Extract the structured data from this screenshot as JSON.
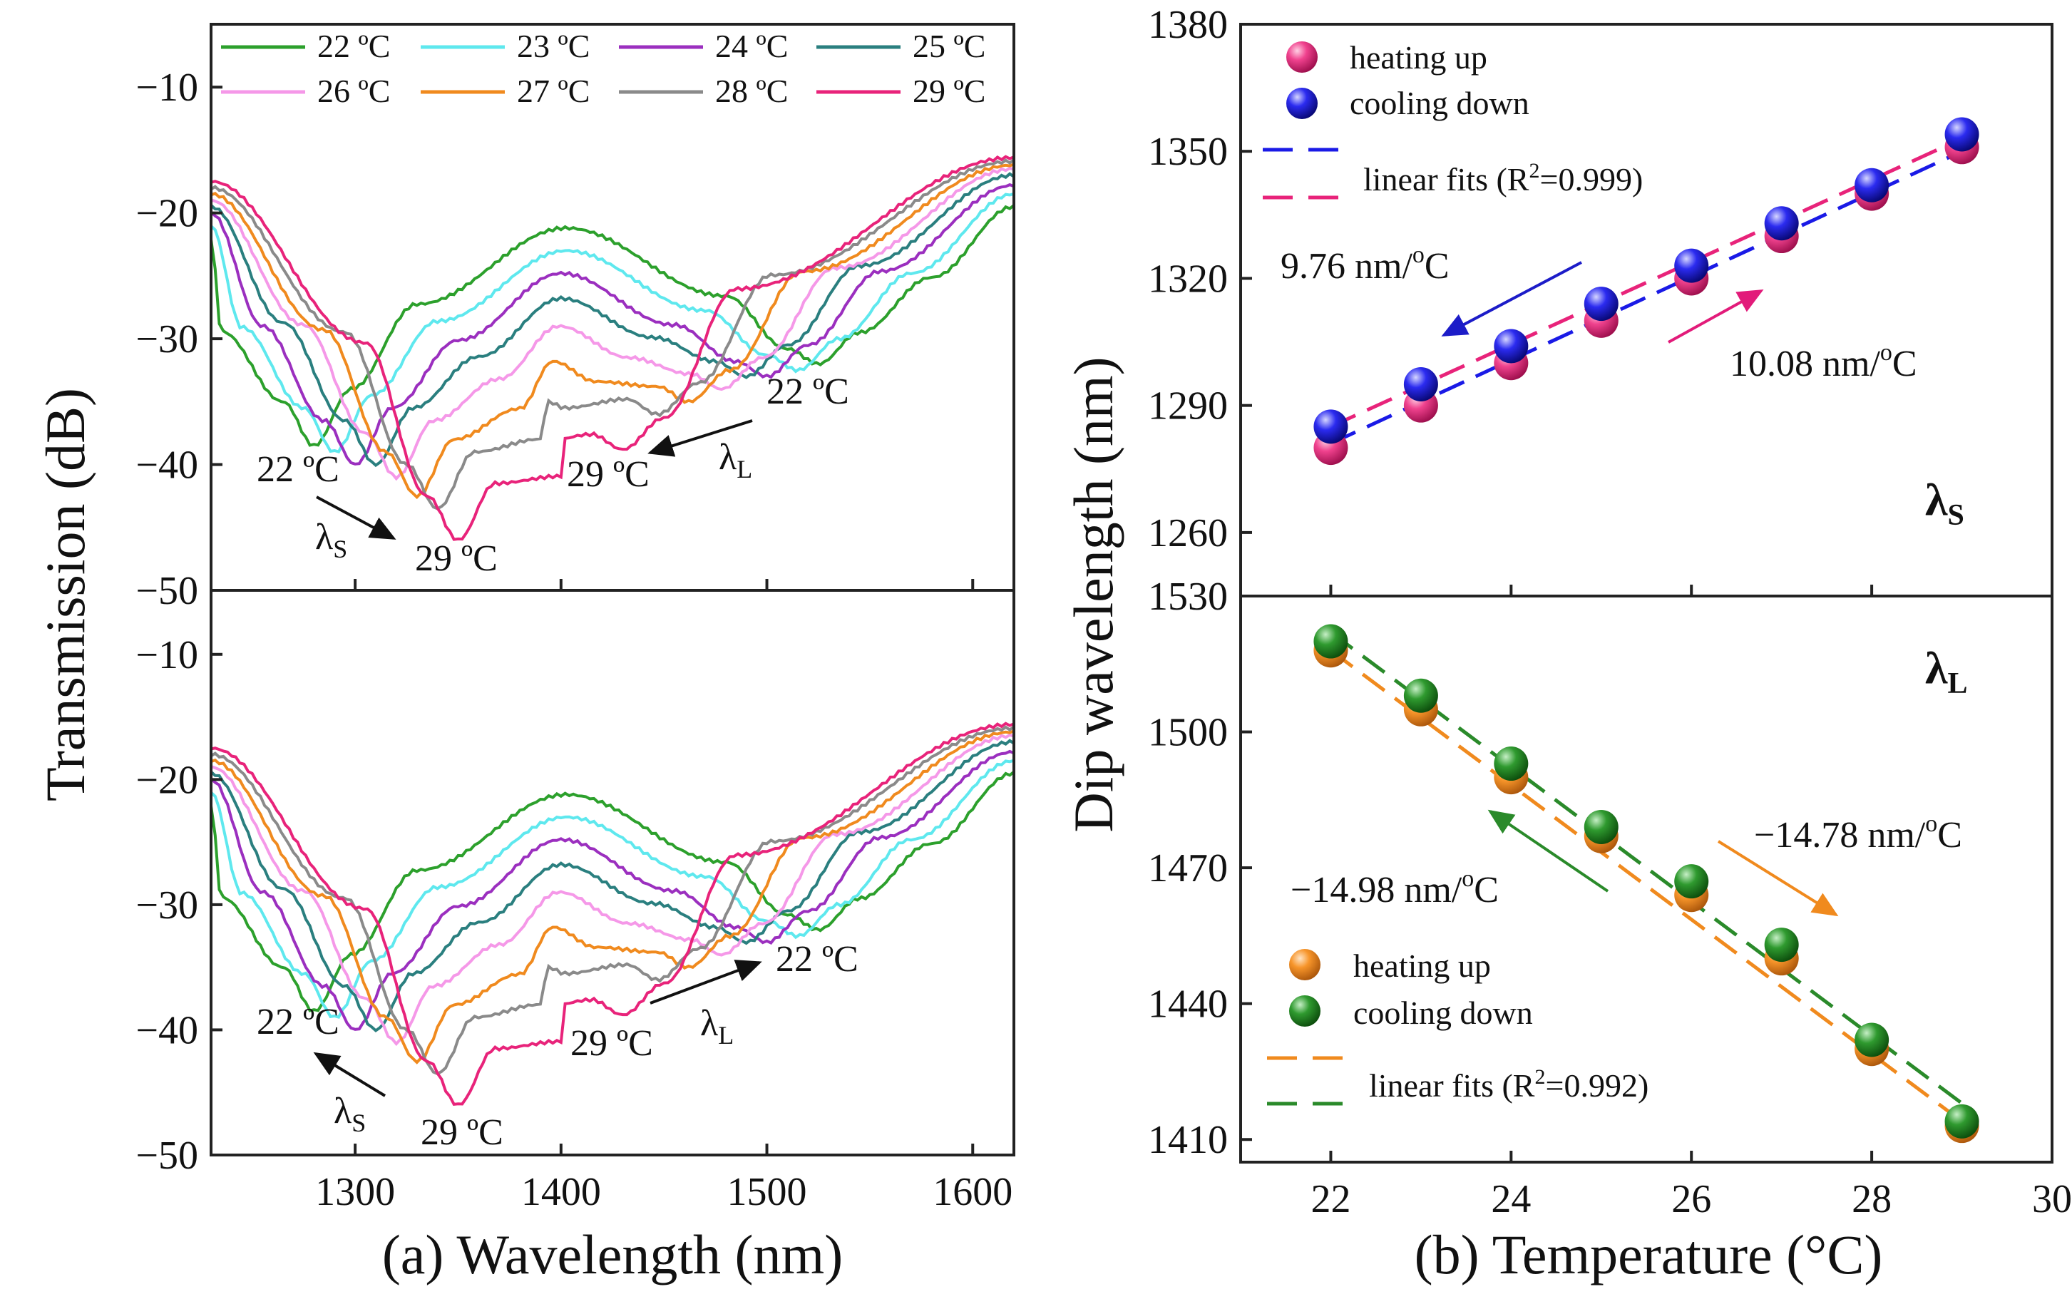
{
  "colors": {
    "t22": "#2ca02c",
    "t23": "#5ee8ee",
    "t24": "#9b2fbf",
    "t25": "#2a7f7f",
    "t26": "#f598e8",
    "t27": "#f08a1e",
    "t28": "#8a8a8a",
    "t29": "#e8237a",
    "cool_s": "#1a1ae6",
    "heat_s": "#e8237a",
    "heat_l": "#f08a1e",
    "cool_l": "#2a8a2a",
    "annot_blue": "#1c1cc8",
    "annot_pink": "#e21b7a",
    "annot_green": "#2ca02c",
    "annot_orange": "#f08a1e"
  },
  "chart_data": [
    {
      "id": "a-top",
      "type": "line",
      "xlabel": "(a) Wavelength (nm)",
      "ylabel": "Transmission (dB)",
      "xlim": [
        1230,
        1620
      ],
      "ylim": [
        -50,
        -5
      ],
      "xticks": [
        1300,
        1400,
        1500,
        1600
      ],
      "yticks": [
        -10,
        -20,
        -30,
        -40,
        -50
      ],
      "legend": [
        "22 ºC",
        "23 ºC",
        "24 ºC",
        "25 ºC",
        "26 ºC",
        "27 ºC",
        "28 ºC",
        "29 ºC"
      ],
      "series": [
        {
          "name": "22 ºC",
          "color_key": "t22",
          "dips": [
            [
              1280,
              -38.5
            ],
            [
              1525,
              -32
            ]
          ],
          "peak": -21.2,
          "left": -22,
          "right": -19.5
        },
        {
          "name": "23 ºC",
          "color_key": "t23",
          "dips": [
            [
              1290,
              -39
            ],
            [
              1515,
              -32.5
            ]
          ],
          "peak": -23,
          "left": -21,
          "right": -18.5
        },
        {
          "name": "24 ºC",
          "color_key": "t24",
          "dips": [
            [
              1300,
              -40
            ],
            [
              1500,
              -33
            ]
          ],
          "peak": -24.8,
          "left": -20,
          "right": -17.8
        },
        {
          "name": "25 ºC",
          "color_key": "t25",
          "dips": [
            [
              1310,
              -40
            ],
            [
              1490,
              -33
            ]
          ],
          "peak": -26.8,
          "left": -19.5,
          "right": -17
        },
        {
          "name": "26 ºC",
          "color_key": "t26",
          "dips": [
            [
              1320,
              -41
            ],
            [
              1478,
              -34
            ]
          ],
          "peak": -29,
          "left": -19,
          "right": -16.5
        },
        {
          "name": "27 ºC",
          "color_key": "t27",
          "dips": [
            [
              1330,
              -42.5
            ],
            [
              1462,
              -35
            ]
          ],
          "peak": -31.8,
          "left": -18.5,
          "right": -16.2
        },
        {
          "name": "28 ºC",
          "color_key": "t28",
          "dips": [
            [
              1340,
              -43.5
            ],
            [
              1447,
              -36
            ]
          ],
          "peak": -35,
          "left": -18,
          "right": -15.9
        },
        {
          "name": "29 ºC",
          "color_key": "t29",
          "dips": [
            [
              1350,
              -46
            ],
            [
              1430,
              -38.8
            ]
          ],
          "peak": -38.2,
          "left": -17.5,
          "right": -15.6
        }
      ],
      "annotations": [
        {
          "text": "22 ºC",
          "color_key": "annot_green"
        },
        {
          "text": "22 ºC",
          "color_key": "annot_green"
        },
        {
          "text": "29 ºC",
          "color_key": "annot_pink"
        },
        {
          "text": "29 ºC",
          "color_key": "annot_pink"
        },
        {
          "text": "λ",
          "sub": "S"
        },
        {
          "text": "λ",
          "sub": "L"
        }
      ]
    },
    {
      "id": "a-bottom",
      "type": "line",
      "xlabel": "(a) Wavelength (nm)",
      "ylabel": "Transmission (dB)",
      "xlim": [
        1230,
        1620
      ],
      "ylim": [
        -50,
        -5
      ],
      "xticks": [
        1300,
        1400,
        1500,
        1600
      ],
      "yticks": [
        -10,
        -20,
        -30,
        -40,
        -50
      ],
      "series_same_as": "a-top",
      "annotations": [
        {
          "text": "22 ºC",
          "color_key": "annot_green"
        },
        {
          "text": "22 ºC",
          "color_key": "annot_green"
        },
        {
          "text": "29 ºC",
          "color_key": "annot_pink"
        },
        {
          "text": "29 ºC",
          "color_key": "annot_pink"
        },
        {
          "text": "λ",
          "sub": "S"
        },
        {
          "text": "λ",
          "sub": "L"
        }
      ]
    },
    {
      "id": "b-top",
      "type": "scatter",
      "ylabel": "Dip wavelength (nm)",
      "xlim": [
        21,
        30
      ],
      "ylim": [
        1245,
        1380
      ],
      "yticks": [
        1260,
        1290,
        1320,
        1350,
        1380
      ],
      "corner_label": "λ",
      "corner_sub": "S",
      "series": [
        {
          "name": "heating up",
          "color_key": "heat_s",
          "x": [
            22,
            23,
            24,
            25,
            26,
            27,
            28,
            29
          ],
          "y": [
            1280,
            1290,
            1300,
            1310,
            1320,
            1330,
            1340,
            1351
          ]
        },
        {
          "name": "cooling down",
          "color_key": "cool_s",
          "x": [
            22,
            23,
            24,
            25,
            26,
            27,
            28,
            29
          ],
          "y": [
            1285,
            1295,
            1304,
            1314,
            1323,
            1333,
            1342,
            1354
          ]
        }
      ],
      "fits": [
        {
          "color_key": "cool_s",
          "x": [
            22,
            29
          ],
          "y": [
            1281,
            1350
          ]
        },
        {
          "color_key": "heat_s",
          "x": [
            22,
            29
          ],
          "y": [
            1285,
            1353
          ]
        }
      ],
      "legend_fit_text": "linear fits (R",
      "legend_fit_sup": "2",
      "legend_fit_tail": "=0.999)",
      "slope_cool": "9.76 nm/",
      "slope_heat": "10.08 nm/",
      "deg": "o",
      "unit_c": "C"
    },
    {
      "id": "b-bottom",
      "type": "scatter",
      "xlabel": "(b) Temperature (°C)",
      "xlim": [
        21,
        30
      ],
      "ylim": [
        1405,
        1530
      ],
      "xticks": [
        22,
        24,
        26,
        28,
        30
      ],
      "yticks": [
        1410,
        1440,
        1470,
        1500,
        1530
      ],
      "corner_label": "λ",
      "corner_sub": "L",
      "series": [
        {
          "name": "heating up",
          "color_key": "heat_l",
          "x": [
            22,
            23,
            24,
            25,
            26,
            27,
            28,
            29
          ],
          "y": [
            1518,
            1505,
            1490,
            1477,
            1464,
            1450,
            1430,
            1413
          ]
        },
        {
          "name": "cooling down",
          "color_key": "cool_l",
          "x": [
            22,
            23,
            24,
            25,
            26,
            27,
            28,
            29
          ],
          "y": [
            1520,
            1508,
            1493,
            1479,
            1467,
            1453,
            1432,
            1414
          ]
        }
      ],
      "fits": [
        {
          "color_key": "heat_l",
          "x": [
            22,
            29
          ],
          "y": [
            1518,
            1414
          ]
        },
        {
          "color_key": "cool_l",
          "x": [
            22,
            29
          ],
          "y": [
            1522,
            1418
          ]
        }
      ],
      "legend_fit_text": "linear fits (R",
      "legend_fit_sup": "2",
      "legend_fit_tail": "=0.992)",
      "slope_cool": "−14.98 nm/",
      "slope_heat": "−14.78 nm/",
      "deg": "o",
      "unit_c": "C"
    }
  ]
}
